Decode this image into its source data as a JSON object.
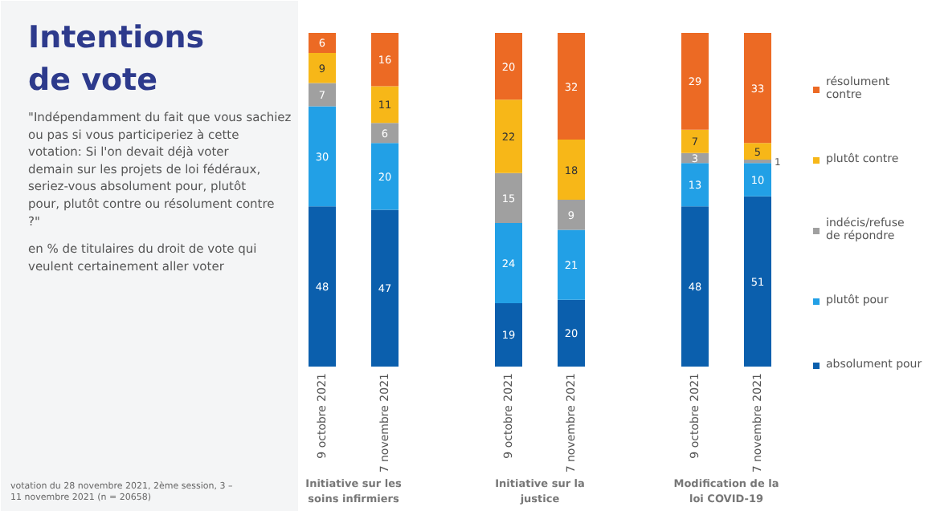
{
  "chart_data": {
    "type": "bar",
    "stacked": true,
    "title": "Intentions de vote",
    "subtitle": "\"Indépendamment du fait que vous sachiez ou pas si vous participeriez à cette votation: Si l'on devait déjà voter demain sur les projets de loi fédéraux, seriez-vous absolument pour, plutôt pour, plutôt contre ou résolument contre ?\"",
    "categories": [
      "9 octobre 2021",
      "7 novembre 2021",
      "9 octobre 2021",
      "7 novembre 2021",
      "9 octobre 2021",
      "7 novembre 2021"
    ],
    "series": [
      {
        "name": "absolument pour",
        "color": "#0b5fad",
        "values": [
          48,
          47,
          19,
          20,
          48,
          51
        ]
      },
      {
        "name": "plutôt pour",
        "color": "#22a0e6",
        "values": [
          30,
          20,
          24,
          21,
          13,
          10
        ]
      },
      {
        "name": "indécis/refuse de répondre",
        "color": "#a0a0a0",
        "values": [
          7,
          6,
          15,
          9,
          3,
          1
        ]
      },
      {
        "name": "plutôt contre",
        "color": "#f7b718",
        "values": [
          9,
          11,
          22,
          18,
          7,
          5
        ]
      },
      {
        "name": "résolument contre",
        "color": "#ec6a24",
        "values": [
          6,
          16,
          20,
          32,
          29,
          33
        ]
      }
    ],
    "data_labels": true,
    "legend": "right",
    "grid": false,
    "annotations": [
      "en % de titulaires du droit de vote qui veulent certainement aller voter",
      "Initiative sur les soins infirmiers",
      "Initiative sur la justice",
      "Modification de la loi COVID-19",
      "votation du 28 novembre 2021, 2ème session, 3 – 11 novembre 2021 (n = 20658)"
    ]
  }
}
